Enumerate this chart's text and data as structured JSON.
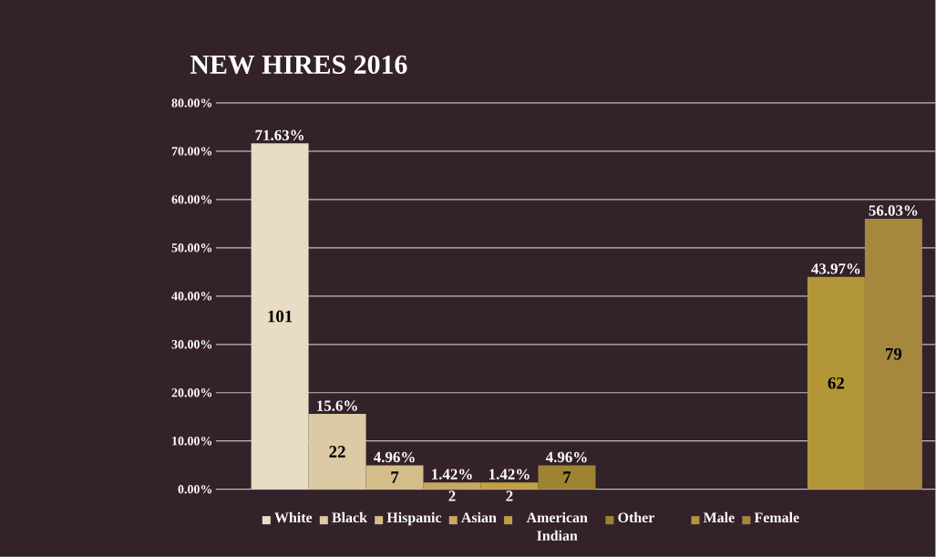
{
  "chart_data": {
    "type": "bar",
    "title": "NEW HIRES 2016",
    "categories": [
      null,
      null
    ],
    "series": [
      {
        "name": "White",
        "color": "#e8dcc4",
        "values": [
          71.63,
          null
        ],
        "value_labels": [
          "71.63%",
          null
        ]
      },
      {
        "name": "Black",
        "color": "#dccaa4",
        "values": [
          15.6,
          null
        ],
        "value_labels": [
          "15.6%",
          null
        ]
      },
      {
        "name": "Hispanic",
        "color": "#d4bd88",
        "values": [
          4.96,
          null
        ],
        "value_labels": [
          "4.96%",
          null
        ]
      },
      {
        "name": "Asian",
        "color": "#c8a860",
        "values": [
          1.42,
          null
        ],
        "value_labels": [
          "1.42%",
          null
        ]
      },
      {
        "name": "American Indian",
        "color": "#c0a048",
        "values": [
          1.42,
          null
        ],
        "value_labels": [
          "1.42%",
          null
        ]
      },
      {
        "name": "Other",
        "color": "#9e8432",
        "values": [
          4.96,
          null
        ],
        "value_labels": [
          "4.96%",
          null
        ]
      },
      {
        "name": "Male",
        "color": "#b39638",
        "values": [
          null,
          43.97
        ],
        "value_labels": [
          null,
          "43.97%"
        ]
      },
      {
        "name": "Female",
        "color": "#a5883e",
        "values": [
          null,
          56.03
        ],
        "value_labels": [
          null,
          "56.03%"
        ]
      }
    ],
    "annotations": [
      "101",
      "22",
      "7",
      "2",
      "2",
      "7",
      "62",
      "79"
    ],
    "ylim": [
      0,
      80
    ],
    "yticks": [
      {
        "value": 0,
        "label": "0.00%"
      },
      {
        "value": 10,
        "label": "10.00%"
      },
      {
        "value": 20,
        "label": "20.00%"
      },
      {
        "value": 30,
        "label": "30.00%"
      },
      {
        "value": 40,
        "label": "40.00%"
      },
      {
        "value": 50,
        "label": "50.00%"
      },
      {
        "value": 60,
        "label": "60.00%"
      },
      {
        "value": 70,
        "label": "70.00%"
      },
      {
        "value": 80,
        "label": "80.00%"
      }
    ],
    "grid": "y",
    "legend": "bottom"
  }
}
